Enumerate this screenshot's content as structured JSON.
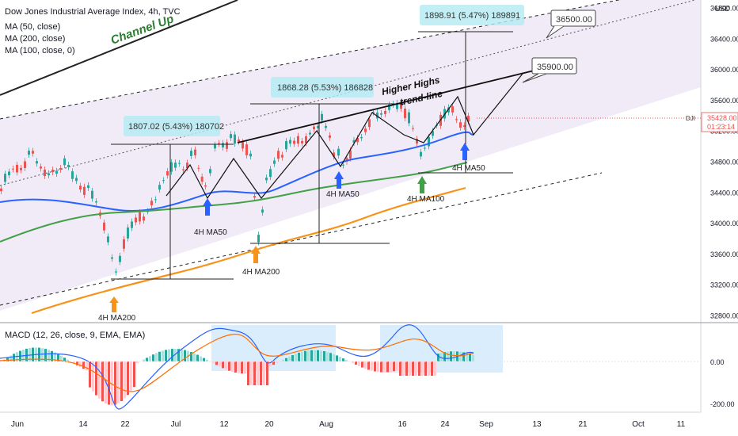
{
  "legend": {
    "title": "Dow Jones Industrial Average Index, 4h, TVC",
    "ma50": "MA (50, close)",
    "ma200": "MA (200, close)",
    "ma100": "MA (100, close, 0)"
  },
  "macd_legend": "MACD (12, 26, close, 9, EMA, EMA)",
  "currency": "USD",
  "price_tag": {
    "symbol": "DJI",
    "price": "35428.00",
    "timer": "01:23:14"
  },
  "annotations": {
    "channel_up": "Channel Up",
    "higher_highs": "Higher Highs",
    "trend_line": "trend-line",
    "box1": "1807.02 (5.43%) 180702",
    "box2": "1868.28 (5.53%) 186828",
    "box3": "1898.91 (5.47%) 189891",
    "target1": "35900.00",
    "target2": "36500.00",
    "arrows": [
      "4H MA200",
      "4H MA50",
      "4H MA200",
      "4H MA50",
      "4H MA100",
      "4H MA50"
    ]
  },
  "colors": {
    "ma50": "#2962ff",
    "ma100": "#43a047",
    "ma200": "#f7931a",
    "up": "#26a69a",
    "down": "#ef5350",
    "channel": "#ede7f6",
    "macd_line": "#2962ff",
    "signal_line": "#ff6d00"
  },
  "chart_data": [
    {
      "type": "candlestick",
      "y_axis_ticks": [
        36800,
        36400,
        36000,
        35600,
        35200,
        34800,
        34400,
        34000,
        33600,
        33200,
        32800
      ],
      "ylim": [
        32700,
        36900
      ],
      "x_axis_ticks": [
        "Jun",
        "14",
        "22",
        "Jul",
        "12",
        "20",
        "Aug",
        "16",
        "24",
        "Sep",
        "13",
        "21",
        "Oct",
        "11"
      ],
      "last_price": 35428.0,
      "targets": [
        35900.0,
        36500.0
      ],
      "measured_moves": [
        {
          "points": 1807.02,
          "percent": 5.43
        },
        {
          "points": 1868.28,
          "percent": 5.53
        },
        {
          "points": 1898.91,
          "percent": 5.47
        }
      ],
      "ma_series": [
        "MA (50, close)",
        "MA (200, close)",
        "MA (100, close, 0)"
      ]
    },
    {
      "type": "histogram",
      "name": "MACD (12, 26, close, 9, EMA, EMA)",
      "y_axis_ticks": [
        0.0,
        -200.0
      ]
    }
  ]
}
